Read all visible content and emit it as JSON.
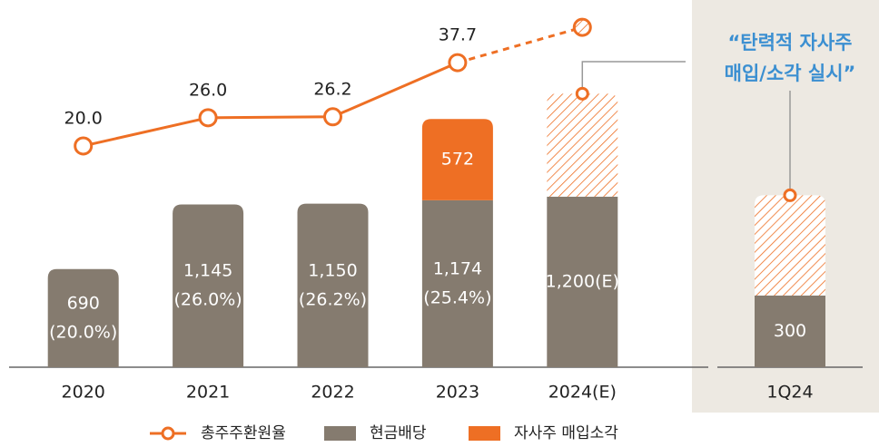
{
  "chart_data": [
    {
      "type": "bar",
      "categories": [
        "2020",
        "2021",
        "2022",
        "2023",
        "2024(E)"
      ],
      "ylim": [
        0,
        2500
      ],
      "y2lim": [
        -27,
        48.5
      ],
      "series": [
        {
          "name": "총주주환원율",
          "type": "line",
          "axis": "y2",
          "color": "#ee6f24",
          "values": [
            20.0,
            26.0,
            26.2,
            37.7,
            45.2
          ],
          "value_labels": [
            "20.0",
            "26.0",
            "26.2",
            "37.7",
            null
          ],
          "estimated": [
            false,
            false,
            false,
            false,
            true
          ]
        },
        {
          "name": "현금배당",
          "color": "#857b6f",
          "values": [
            690,
            1145,
            1150,
            1174,
            1200
          ],
          "value_labels": [
            "690",
            "1,145",
            "1,150",
            "1,174",
            "1,200(E)"
          ],
          "share_labels": [
            "(20.0%)",
            "(26.0%)",
            "(26.2%)",
            "(25.4%)",
            null
          ]
        },
        {
          "name": "자사주 매입소각",
          "color": "#ee6f24",
          "values": [
            null,
            null,
            null,
            572,
            724
          ],
          "value_labels": [
            null,
            null,
            null,
            "572",
            null
          ],
          "hatched": [
            false,
            false,
            false,
            false,
            true
          ]
        }
      ]
    },
    {
      "type": "bar",
      "categories": [
        "1Q24"
      ],
      "ylim": [
        0,
        1500
      ],
      "annotation": [
        "“탄력적 자사주",
        "매입/소각 실시”"
      ],
      "series": [
        {
          "color": "#857b6f",
          "values": [
            300
          ],
          "value_labels": [
            "300"
          ]
        },
        {
          "color": "#ee6f24",
          "values": [
            420
          ],
          "value_labels": [
            null
          ],
          "hatched": [
            true
          ]
        }
      ]
    }
  ]
}
